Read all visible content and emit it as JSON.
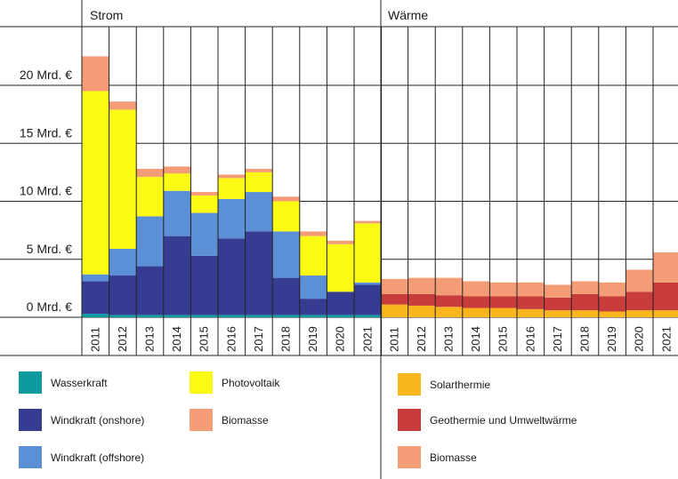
{
  "chart_data": {
    "type": "bar",
    "stacked": true,
    "unit": "Mrd. €",
    "y_axis": {
      "ylim": [
        0,
        22.5
      ],
      "ticks": [
        0,
        5,
        10,
        15,
        20
      ],
      "tick_labels": [
        "0 Mrd. €",
        "5 Mrd. €",
        "10 Mrd. €",
        "15 Mrd. €",
        "20 Mrd. €"
      ],
      "grid": true
    },
    "panels": [
      {
        "title": "Strom",
        "categories": [
          "2011",
          "2012",
          "2013",
          "2014",
          "2015",
          "2016",
          "2017",
          "2018",
          "2019",
          "2020",
          "2021"
        ],
        "series": [
          {
            "name": "Wasserkraft",
            "color": "#0f9aa0",
            "values": [
              0.3,
              0.2,
              0.2,
              0.2,
              0.2,
              0.2,
              0.2,
              0.2,
              0.2,
              0.2,
              0.2
            ]
          },
          {
            "name": "Windkraft (onshore)",
            "color": "#353c92",
            "values": [
              2.8,
              3.4,
              4.2,
              6.8,
              5.1,
              6.6,
              7.2,
              3.2,
              1.4,
              2.0,
              2.6
            ]
          },
          {
            "name": "Windkraft (offshore)",
            "color": "#5b8fd6",
            "values": [
              0.6,
              2.3,
              4.3,
              3.9,
              3.7,
              3.4,
              3.4,
              4.0,
              2.0,
              0.0,
              0.2
            ]
          },
          {
            "name": "Photovoltaik",
            "color": "#fafa14",
            "values": [
              15.8,
              12.0,
              3.4,
              1.5,
              1.5,
              1.8,
              1.7,
              2.6,
              3.4,
              4.1,
              5.1
            ]
          },
          {
            "name": "Biomasse",
            "color": "#f49c76",
            "values": [
              3.0,
              0.7,
              0.7,
              0.6,
              0.3,
              0.3,
              0.3,
              0.4,
              0.4,
              0.3,
              0.2
            ]
          }
        ]
      },
      {
        "title": "Wärme",
        "categories": [
          "2011",
          "2012",
          "2013",
          "2014",
          "2015",
          "2016",
          "2017",
          "2018",
          "2019",
          "2020",
          "2021"
        ],
        "series": [
          {
            "name": "Solarthermie",
            "color": "#f8b51e",
            "values": [
              1.1,
              1.0,
              0.9,
              0.8,
              0.8,
              0.7,
              0.6,
              0.6,
              0.5,
              0.6,
              0.6
            ]
          },
          {
            "name": "Geothermie und Umweltwärme",
            "color": "#c83c3c",
            "values": [
              0.9,
              1.0,
              1.0,
              1.0,
              1.0,
              1.1,
              1.1,
              1.4,
              1.3,
              1.6,
              2.4
            ]
          },
          {
            "name": "Biomasse",
            "color": "#f49c76",
            "values": [
              1.3,
              1.4,
              1.5,
              1.3,
              1.2,
              1.2,
              1.1,
              1.1,
              1.2,
              1.9,
              2.6
            ]
          }
        ]
      }
    ],
    "legend": {
      "placement": "bottom",
      "strom": [
        "Wasserkraft",
        "Windkraft (onshore)",
        "Windkraft (offshore)",
        "Photovoltaik",
        "Biomasse"
      ],
      "waerme": [
        "Solarthermie",
        "Geothermie und Umweltwärme",
        "Biomasse"
      ]
    }
  }
}
